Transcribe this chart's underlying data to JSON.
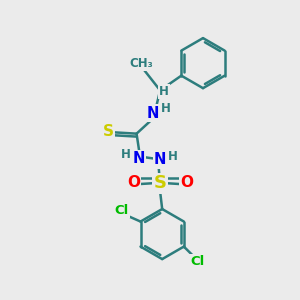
{
  "background_color": "#ebebeb",
  "bond_color": "#2d7d7d",
  "bond_width": 1.8,
  "font_size_atom": 10,
  "colors": {
    "C": "#2d7d7d",
    "N": "#0000ee",
    "S": "#cccc00",
    "O": "#ff0000",
    "Cl": "#00bb00",
    "H": "#2d7d7d"
  },
  "xlim": [
    0,
    10
  ],
  "ylim": [
    0,
    10
  ]
}
